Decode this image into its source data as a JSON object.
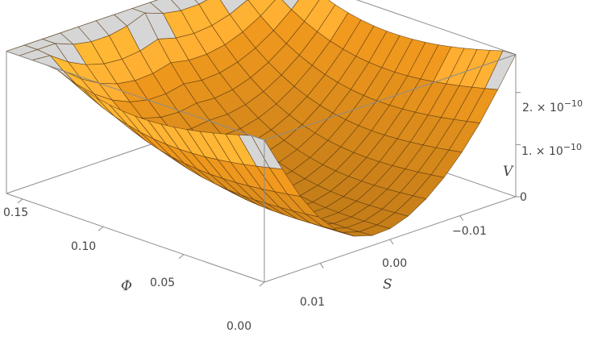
{
  "chart_data": {
    "type": "surface3d",
    "title": "",
    "x_axis": {
      "label": "S",
      "range": [
        0.018,
        -0.018
      ],
      "ticks": [
        {
          "value": 0.01,
          "label": "0.01"
        },
        {
          "value": 0.0,
          "label": "0.00"
        },
        {
          "value": -0.01,
          "label": "−0.01"
        }
      ]
    },
    "y_axis": {
      "label": "Φ",
      "range": [
        0.0,
        0.16
      ],
      "ticks": [
        {
          "value": 0.0,
          "label": "0.00"
        },
        {
          "value": 0.05,
          "label": "0.05"
        },
        {
          "value": 0.1,
          "label": "0.10"
        },
        {
          "value": 0.15,
          "label": "0.15"
        }
      ]
    },
    "z_axis": {
      "label": "V",
      "range": [
        0,
        2.6e-10
      ],
      "ticks": [
        {
          "value": 0,
          "mantissa": "0",
          "exponent": ""
        },
        {
          "value": 1e-10,
          "mantissa": "1. × 10",
          "exponent": "−10"
        },
        {
          "value": 2e-10,
          "mantissa": "2. × 10",
          "exponent": "−10"
        }
      ]
    },
    "mesh": {
      "s_divisions": 14,
      "phi_divisions": 20
    },
    "surface_color": "#f29a1e",
    "clip_color": "#d6d6d6",
    "box_color": "#8c8c8c",
    "grid": false
  }
}
